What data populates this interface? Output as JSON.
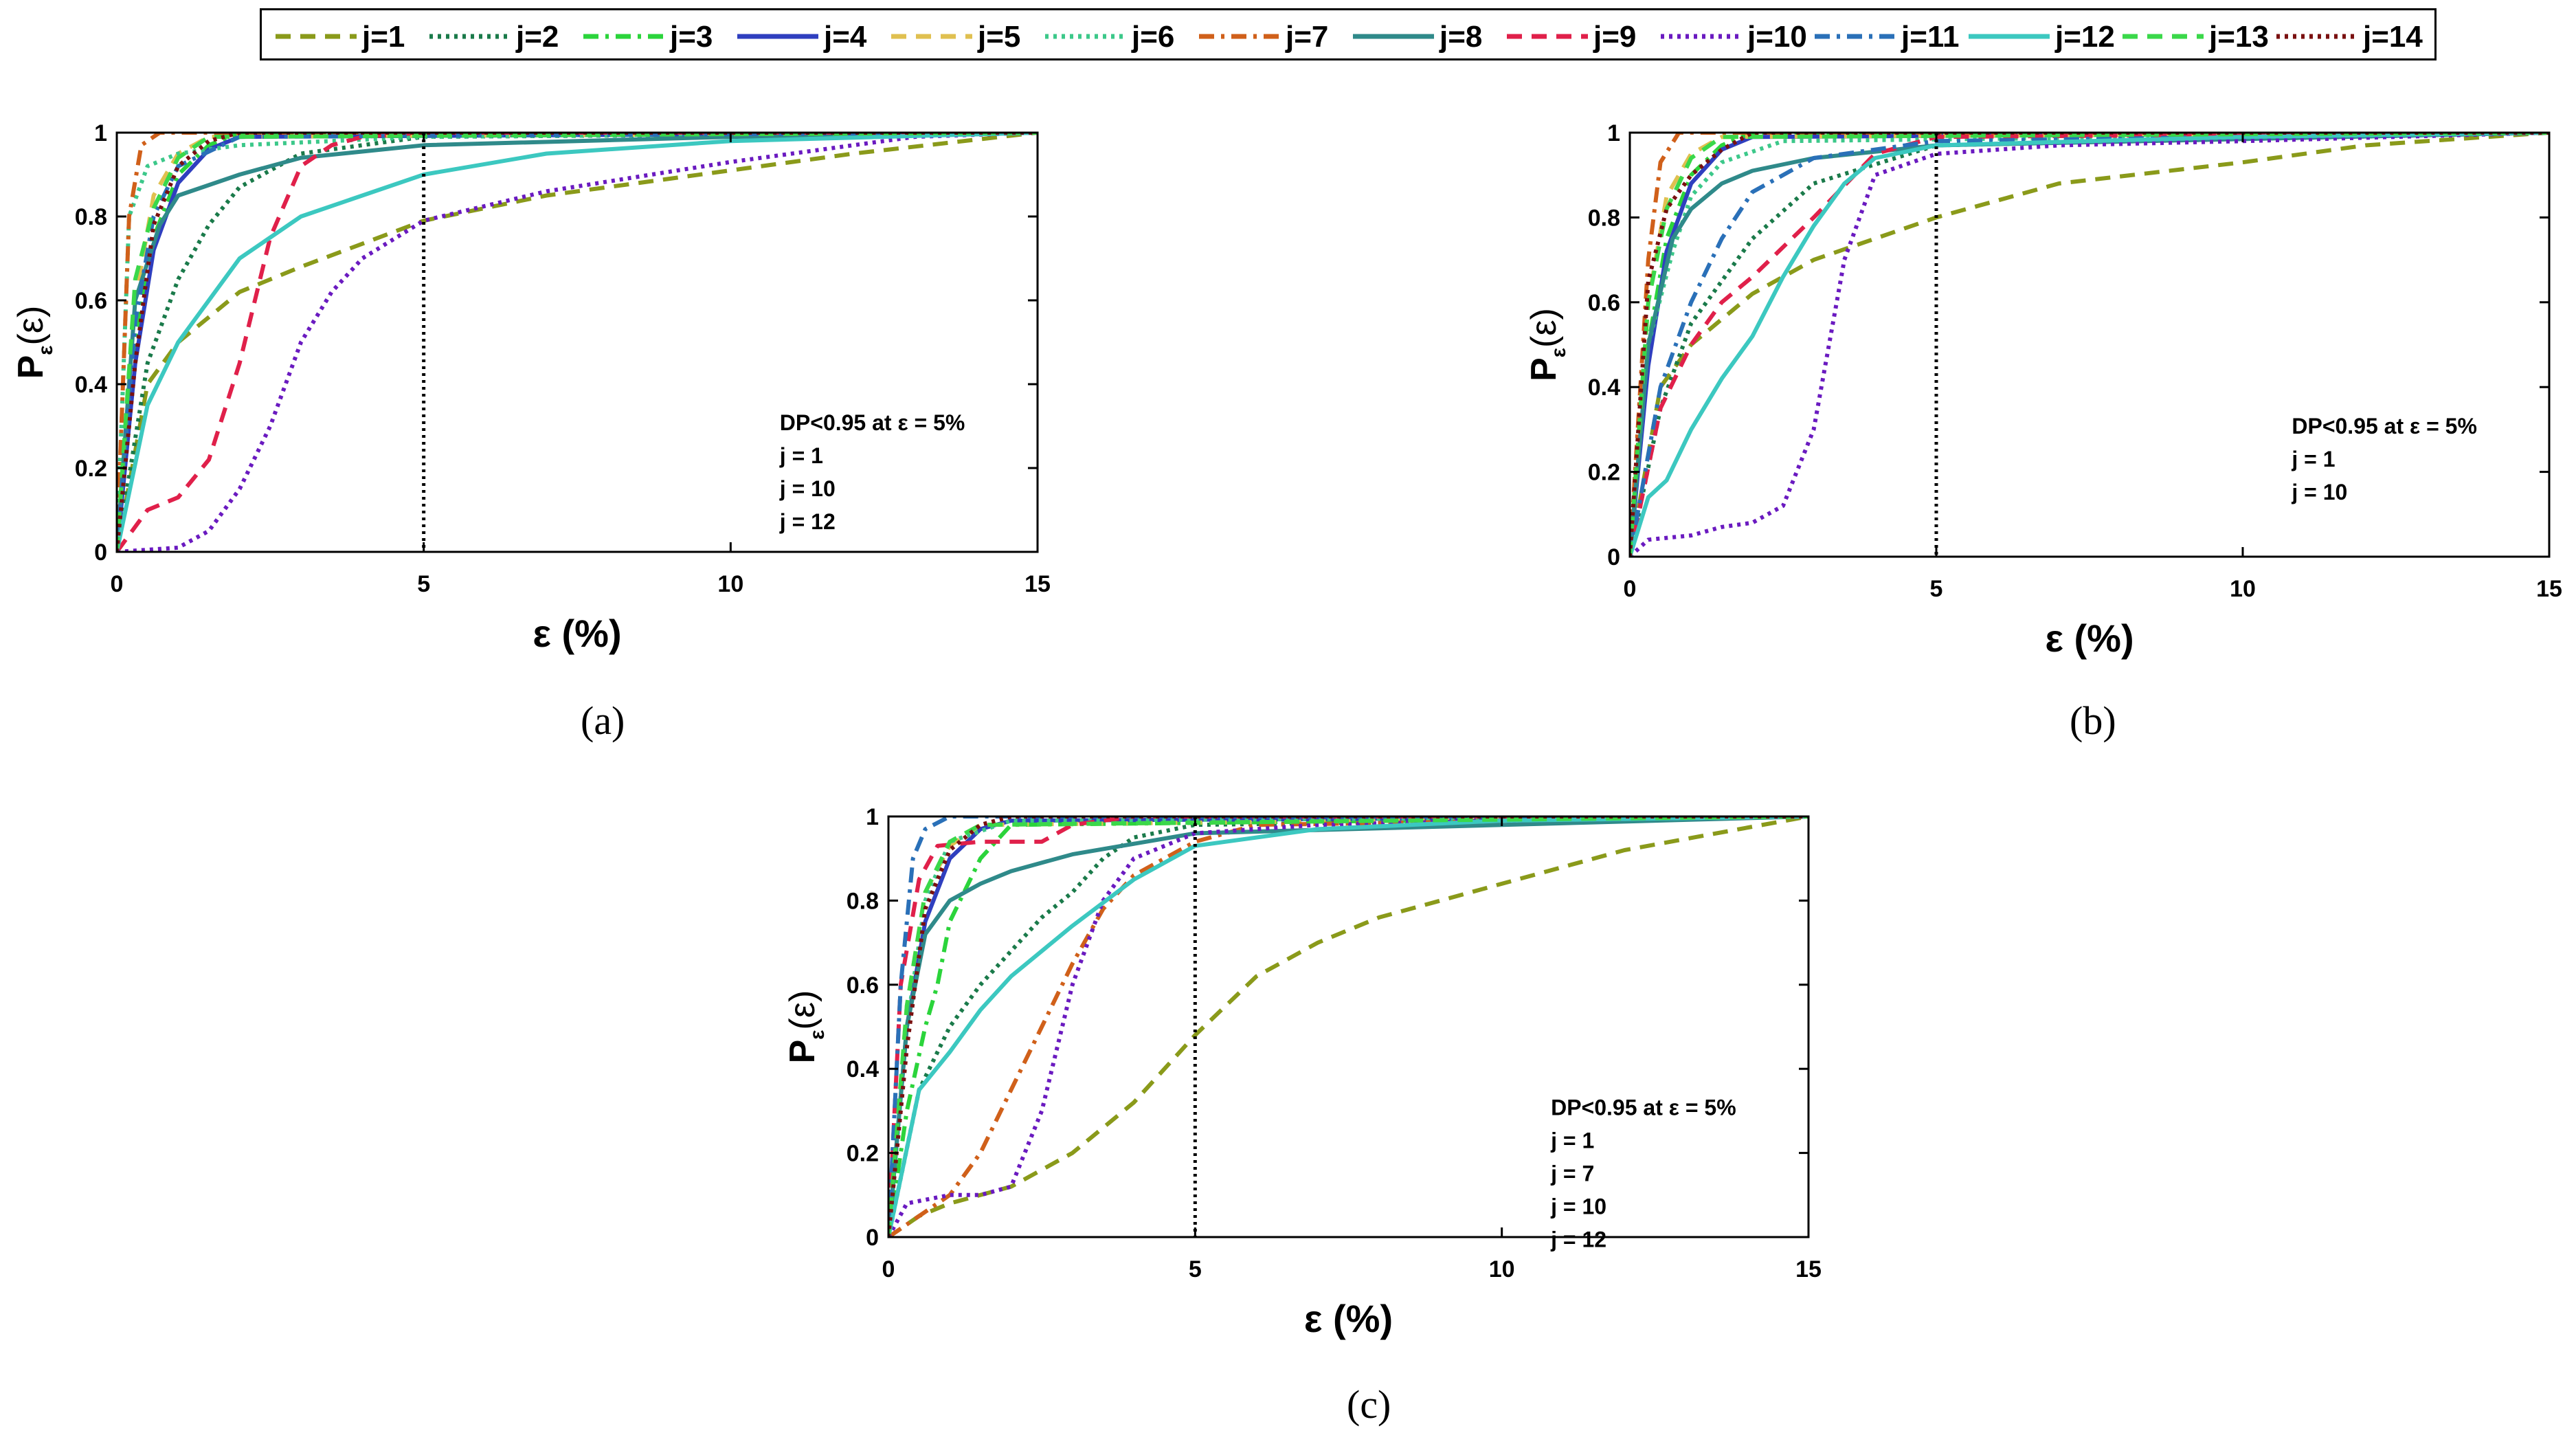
{
  "legend": {
    "entries": [
      "j=1",
      "j=2",
      "j=3",
      "j=4",
      "j=5",
      "j=6",
      "j=7",
      "j=8",
      "j=9",
      "j=10",
      "j=11",
      "j=12",
      "j=13",
      "j=14"
    ]
  },
  "series_styles": [
    {
      "color": "#8a9a1a",
      "dash": "dashed"
    },
    {
      "color": "#1a7a4a",
      "dash": "dotted"
    },
    {
      "color": "#2bd43b",
      "dash": "dashdot"
    },
    {
      "color": "#2f3fbf",
      "dash": "solid"
    },
    {
      "color": "#e0c050",
      "dash": "dashed"
    },
    {
      "color": "#3cc88a",
      "dash": "dotted"
    },
    {
      "color": "#d0601a",
      "dash": "dashdot"
    },
    {
      "color": "#2f8a8a",
      "dash": "solid"
    },
    {
      "color": "#e0204a",
      "dash": "dashed"
    },
    {
      "color": "#6a1ac0",
      "dash": "dotted"
    },
    {
      "color": "#2a70b8",
      "dash": "dashdot"
    },
    {
      "color": "#3cc8c0",
      "dash": "solid"
    },
    {
      "color": "#3ad84a",
      "dash": "dashed"
    },
    {
      "color": "#7a1010",
      "dash": "dotted"
    }
  ],
  "chart_data": [
    {
      "type": "line",
      "panel_label": "(a)",
      "xlabel": "ε (%)",
      "ylabel": "P_ε(ε)",
      "xlim": [
        0,
        15
      ],
      "ylim": [
        0,
        1
      ],
      "xticks": [
        "0",
        "5",
        "10",
        "15"
      ],
      "yticks": [
        "0",
        "0.2",
        "0.4",
        "0.6",
        "0.8",
        "1"
      ],
      "vline_x": 5,
      "annotation": [
        "DP<0.95 at ε = 5%",
        "j = 1",
        "j = 10",
        "j = 12"
      ],
      "series": [
        {
          "name": "j=1",
          "x": [
            0,
            0.5,
            1,
            2,
            3,
            5,
            7,
            10,
            12,
            15
          ],
          "y": [
            0,
            0.4,
            0.5,
            0.62,
            0.68,
            0.79,
            0.85,
            0.91,
            0.95,
            1
          ]
        },
        {
          "name": "j=2",
          "x": [
            0,
            0.5,
            1,
            1.5,
            2,
            3,
            5,
            15
          ],
          "y": [
            0,
            0.45,
            0.65,
            0.78,
            0.87,
            0.95,
            0.99,
            1
          ]
        },
        {
          "name": "j=3",
          "x": [
            0,
            0.3,
            0.6,
            1,
            1.5,
            2,
            15
          ],
          "y": [
            0,
            0.5,
            0.75,
            0.9,
            0.97,
            1,
            1
          ]
        },
        {
          "name": "j=4",
          "x": [
            0,
            0.3,
            0.6,
            1,
            1.5,
            2,
            15
          ],
          "y": [
            0,
            0.45,
            0.72,
            0.88,
            0.96,
            0.99,
            1
          ]
        },
        {
          "name": "j=5",
          "x": [
            0,
            0.3,
            0.6,
            1,
            1.5,
            15
          ],
          "y": [
            0,
            0.6,
            0.85,
            0.95,
            0.99,
            1
          ]
        },
        {
          "name": "j=6",
          "x": [
            0,
            0.2,
            0.5,
            1,
            2,
            5,
            15
          ],
          "y": [
            0,
            0.8,
            0.92,
            0.95,
            0.97,
            0.99,
            1
          ]
        },
        {
          "name": "j=7",
          "x": [
            0,
            0.2,
            0.4,
            0.7,
            15
          ],
          "y": [
            0,
            0.8,
            0.97,
            1,
            1
          ]
        },
        {
          "name": "j=8",
          "x": [
            0,
            0.3,
            0.7,
            1,
            2,
            3,
            5,
            10,
            15
          ],
          "y": [
            0,
            0.6,
            0.78,
            0.85,
            0.9,
            0.94,
            0.97,
            0.99,
            1
          ]
        },
        {
          "name": "j=9",
          "x": [
            0,
            0.5,
            1,
            1.5,
            2,
            2.5,
            3,
            3.5,
            4,
            5,
            15
          ],
          "y": [
            0,
            0.1,
            0.13,
            0.22,
            0.45,
            0.75,
            0.92,
            0.97,
            0.99,
            1,
            1
          ]
        },
        {
          "name": "j=10",
          "x": [
            0,
            1,
            1.5,
            2,
            2.5,
            3,
            3.5,
            4,
            5,
            7,
            10,
            13,
            15
          ],
          "y": [
            0,
            0.01,
            0.05,
            0.15,
            0.3,
            0.5,
            0.62,
            0.7,
            0.79,
            0.86,
            0.93,
            0.99,
            1
          ]
        },
        {
          "name": "j=11",
          "x": [
            0,
            0.3,
            0.6,
            1,
            2,
            15
          ],
          "y": [
            0,
            0.55,
            0.8,
            0.92,
            0.99,
            1
          ]
        },
        {
          "name": "j=12",
          "x": [
            0,
            0.5,
            1,
            2,
            3,
            5,
            7,
            10,
            15
          ],
          "y": [
            0,
            0.35,
            0.5,
            0.7,
            0.8,
            0.9,
            0.95,
            0.98,
            1
          ]
        },
        {
          "name": "j=13",
          "x": [
            0,
            0.3,
            0.6,
            1,
            1.5,
            15
          ],
          "y": [
            0,
            0.65,
            0.82,
            0.94,
            0.99,
            1
          ]
        },
        {
          "name": "j=14",
          "x": [
            0,
            0.3,
            0.6,
            1,
            1.5,
            2,
            15
          ],
          "y": [
            0,
            0.45,
            0.78,
            0.92,
            0.98,
            1,
            1
          ]
        }
      ]
    },
    {
      "type": "line",
      "panel_label": "(b)",
      "xlabel": "ε (%)",
      "ylabel": "P_ε(ε)",
      "xlim": [
        0,
        15
      ],
      "ylim": [
        0,
        1
      ],
      "xticks": [
        "0",
        "5",
        "10",
        "15"
      ],
      "yticks": [
        "0",
        "0.2",
        "0.4",
        "0.6",
        "0.8",
        "1"
      ],
      "vline_x": 5,
      "annotation": [
        "DP<0.95 at ε = 5%",
        "j = 1",
        "j = 10"
      ],
      "series": [
        {
          "name": "j=1",
          "x": [
            0,
            0.5,
            1,
            2,
            3,
            5,
            7,
            10,
            12,
            15
          ],
          "y": [
            0,
            0.4,
            0.5,
            0.62,
            0.7,
            0.8,
            0.88,
            0.93,
            0.97,
            1
          ]
        },
        {
          "name": "j=2",
          "x": [
            0,
            0.5,
            1,
            2,
            3,
            5,
            15
          ],
          "y": [
            0,
            0.35,
            0.55,
            0.75,
            0.88,
            0.97,
            1
          ]
        },
        {
          "name": "j=3",
          "x": [
            0,
            0.3,
            0.6,
            1,
            1.5,
            2,
            15
          ],
          "y": [
            0,
            0.5,
            0.75,
            0.9,
            0.97,
            1,
            1
          ]
        },
        {
          "name": "j=4",
          "x": [
            0,
            0.3,
            0.6,
            1,
            1.5,
            2,
            15
          ],
          "y": [
            0,
            0.45,
            0.72,
            0.88,
            0.96,
            0.99,
            1
          ]
        },
        {
          "name": "j=5",
          "x": [
            0,
            0.3,
            0.6,
            1,
            1.5,
            15
          ],
          "y": [
            0,
            0.6,
            0.85,
            0.95,
            0.99,
            1
          ]
        },
        {
          "name": "j=6",
          "x": [
            0,
            0.3,
            0.7,
            1,
            1.5,
            2.5,
            15
          ],
          "y": [
            0,
            0.5,
            0.72,
            0.85,
            0.93,
            0.98,
            1
          ]
        },
        {
          "name": "j=7",
          "x": [
            0,
            0.3,
            0.5,
            0.8,
            15
          ],
          "y": [
            0,
            0.7,
            0.93,
            1,
            1
          ]
        },
        {
          "name": "j=8",
          "x": [
            0,
            0.3,
            0.7,
            1,
            1.5,
            2,
            3,
            5,
            15
          ],
          "y": [
            0,
            0.5,
            0.75,
            0.82,
            0.88,
            0.91,
            0.94,
            0.97,
            1
          ]
        },
        {
          "name": "j=9",
          "x": [
            0,
            0.5,
            1,
            1.5,
            2,
            3,
            4,
            5,
            15
          ],
          "y": [
            0,
            0.35,
            0.5,
            0.6,
            0.66,
            0.8,
            0.95,
            0.99,
            1
          ]
        },
        {
          "name": "j=10",
          "x": [
            0,
            0.3,
            1,
            1.5,
            2,
            2.5,
            3,
            3.5,
            4,
            5,
            7,
            10,
            15
          ],
          "y": [
            0,
            0.04,
            0.05,
            0.07,
            0.08,
            0.12,
            0.3,
            0.7,
            0.9,
            0.95,
            0.97,
            0.98,
            1
          ]
        },
        {
          "name": "j=11",
          "x": [
            0,
            0.5,
            1,
            1.5,
            2,
            3,
            5,
            15
          ],
          "y": [
            0,
            0.4,
            0.6,
            0.75,
            0.86,
            0.94,
            0.98,
            1
          ]
        },
        {
          "name": "j=12",
          "x": [
            0,
            0.3,
            0.6,
            1,
            1.5,
            2,
            2.5,
            3,
            3.5,
            4,
            5,
            10,
            15
          ],
          "y": [
            0,
            0.14,
            0.18,
            0.3,
            0.42,
            0.52,
            0.66,
            0.78,
            0.88,
            0.94,
            0.97,
            0.99,
            1
          ]
        },
        {
          "name": "j=13",
          "x": [
            0,
            0.3,
            0.6,
            1,
            1.5,
            15
          ],
          "y": [
            0,
            0.6,
            0.82,
            0.94,
            0.99,
            1
          ]
        },
        {
          "name": "j=14",
          "x": [
            0,
            0.3,
            0.6,
            1,
            1.5,
            2,
            15
          ],
          "y": [
            0,
            0.65,
            0.82,
            0.9,
            0.96,
            1,
            1
          ]
        }
      ]
    },
    {
      "type": "line",
      "panel_label": "(c)",
      "xlabel": "ε (%)",
      "ylabel": "P_ε(ε)",
      "xlim": [
        0,
        15
      ],
      "ylim": [
        0,
        1
      ],
      "xticks": [
        "0",
        "5",
        "10",
        "15"
      ],
      "yticks": [
        "0",
        "0.2",
        "0.4",
        "0.6",
        "0.8",
        "1"
      ],
      "vline_x": 5,
      "annotation": [
        "DP<0.95 at ε = 5%",
        "j = 1",
        "j = 7",
        "j = 10",
        "j = 12"
      ],
      "series": [
        {
          "name": "j=1",
          "x": [
            0,
            0.5,
            1,
            2,
            3,
            4,
            5,
            6,
            7,
            8,
            10,
            12,
            15
          ],
          "y": [
            0,
            0.05,
            0.08,
            0.12,
            0.2,
            0.32,
            0.48,
            0.62,
            0.7,
            0.76,
            0.84,
            0.92,
            1
          ]
        },
        {
          "name": "j=2",
          "x": [
            0,
            0.5,
            1,
            1.5,
            2,
            2.5,
            3,
            3.5,
            4,
            5,
            15
          ],
          "y": [
            0,
            0.35,
            0.5,
            0.6,
            0.68,
            0.76,
            0.82,
            0.9,
            0.95,
            0.98,
            1
          ]
        },
        {
          "name": "j=3",
          "x": [
            0,
            0.3,
            0.6,
            0.8,
            1,
            1.5,
            2,
            15
          ],
          "y": [
            0,
            0.3,
            0.5,
            0.6,
            0.75,
            0.9,
            0.98,
            1
          ]
        },
        {
          "name": "j=4",
          "x": [
            0,
            0.3,
            0.6,
            1,
            1.5,
            2,
            15
          ],
          "y": [
            0,
            0.5,
            0.75,
            0.9,
            0.97,
            0.99,
            1
          ]
        },
        {
          "name": "j=5",
          "x": [
            0,
            0.3,
            0.6,
            1,
            1.5,
            15
          ],
          "y": [
            0,
            0.55,
            0.82,
            0.93,
            0.98,
            1
          ]
        },
        {
          "name": "j=6",
          "x": [
            0,
            0.3,
            0.6,
            1,
            2,
            15
          ],
          "y": [
            0,
            0.5,
            0.8,
            0.94,
            0.99,
            1
          ]
        },
        {
          "name": "j=7",
          "x": [
            0,
            0.5,
            1,
            1.5,
            2,
            2.5,
            3,
            3.5,
            4,
            5,
            6,
            15
          ],
          "y": [
            0,
            0.05,
            0.1,
            0.2,
            0.35,
            0.5,
            0.65,
            0.78,
            0.86,
            0.94,
            0.98,
            1
          ]
        },
        {
          "name": "j=8",
          "x": [
            0,
            0.3,
            0.6,
            1,
            1.5,
            2,
            3,
            5,
            15
          ],
          "y": [
            0,
            0.5,
            0.72,
            0.8,
            0.84,
            0.87,
            0.91,
            0.96,
            1
          ]
        },
        {
          "name": "j=9",
          "x": [
            0,
            0.2,
            0.5,
            0.8,
            1.5,
            2,
            2.5,
            3,
            4,
            15
          ],
          "y": [
            0,
            0.6,
            0.85,
            0.93,
            0.94,
            0.94,
            0.94,
            0.98,
            1,
            1
          ]
        },
        {
          "name": "j=10",
          "x": [
            0,
            0.3,
            1,
            1.5,
            2,
            2.5,
            3,
            3.5,
            4,
            5,
            7,
            10,
            15
          ],
          "y": [
            0,
            0.08,
            0.1,
            0.1,
            0.12,
            0.3,
            0.6,
            0.8,
            0.9,
            0.96,
            0.98,
            0.99,
            1
          ]
        },
        {
          "name": "j=11",
          "x": [
            0,
            0.2,
            0.4,
            0.6,
            1,
            15
          ],
          "y": [
            0,
            0.6,
            0.9,
            0.97,
            1,
            1
          ]
        },
        {
          "name": "j=12",
          "x": [
            0,
            0.5,
            1,
            1.5,
            2,
            3,
            4,
            5,
            7,
            10,
            15
          ],
          "y": [
            0,
            0.35,
            0.44,
            0.54,
            0.62,
            0.74,
            0.85,
            0.93,
            0.97,
            0.99,
            1
          ]
        },
        {
          "name": "j=13",
          "x": [
            0,
            0.3,
            0.6,
            1,
            1.5,
            15
          ],
          "y": [
            0,
            0.55,
            0.82,
            0.94,
            0.98,
            1
          ]
        },
        {
          "name": "j=14",
          "x": [
            0,
            0.3,
            0.6,
            1,
            1.5,
            2,
            15
          ],
          "y": [
            0,
            0.45,
            0.78,
            0.92,
            0.98,
            1,
            1
          ]
        }
      ]
    }
  ]
}
